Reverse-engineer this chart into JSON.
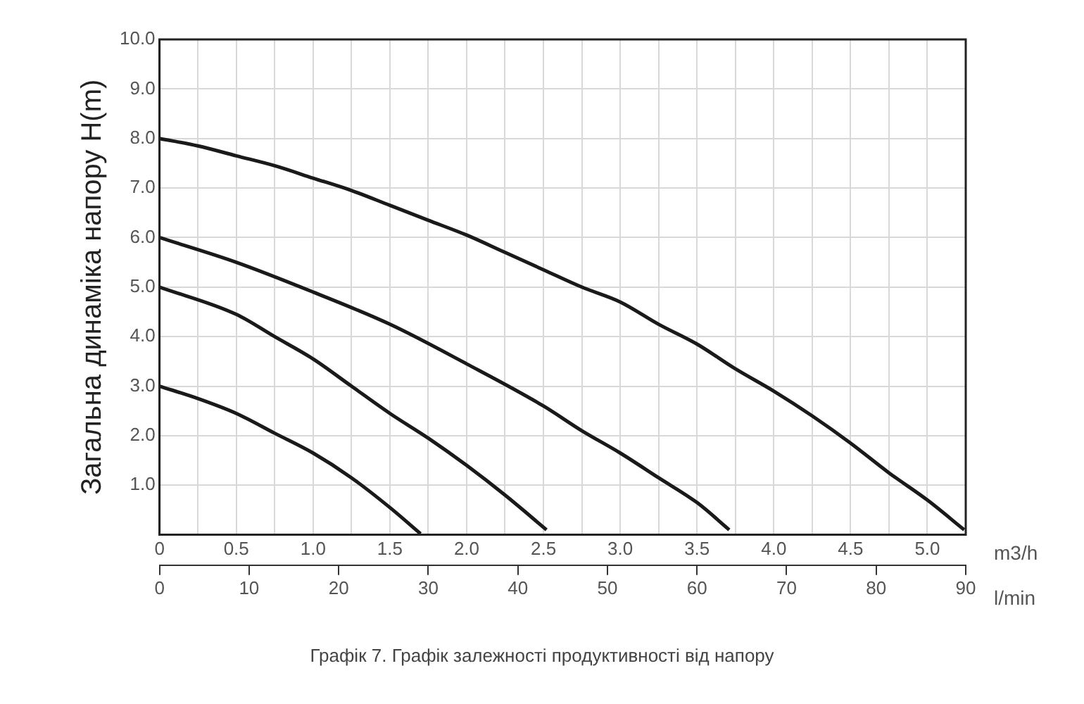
{
  "chart_data": {
    "type": "line",
    "ylabel": "Загальна динаміка напору H(m)",
    "xlabel": "m3/h",
    "x2label": "l/min",
    "annotations": [
      "Графік 7. Графік залежності продуктивності від напору"
    ],
    "xlim": [
      0,
      5.25
    ],
    "xticks": [
      0,
      {
        "value": 0.25,
        "label": null
      },
      0.5,
      {
        "value": 0.75,
        "label": null
      },
      {
        "value": 1,
        "label": "1.0"
      },
      {
        "value": 1.25,
        "label": null
      },
      1.5,
      {
        "value": 1.75,
        "label": null
      },
      {
        "value": 2,
        "label": "2.0"
      },
      {
        "value": 2.25,
        "label": null
      },
      2.5,
      {
        "value": 2.75,
        "label": null
      },
      {
        "value": 3,
        "label": "3.0"
      },
      {
        "value": 3.25,
        "label": null
      },
      3.5,
      {
        "value": 3.75,
        "label": null
      },
      {
        "value": 4,
        "label": "4.0"
      },
      {
        "value": 4.25,
        "label": null
      },
      4.5,
      {
        "value": 4.75,
        "label": null
      },
      {
        "value": 5,
        "label": "5.0"
      }
    ],
    "x2lim": [
      0,
      90
    ],
    "x2ticks": [
      0,
      10,
      20,
      30,
      40,
      50,
      60,
      70,
      80,
      90
    ],
    "ylim": [
      0,
      10
    ],
    "yticks": [
      {
        "value": 0,
        "label": null
      },
      {
        "value": 1,
        "label": "1.0"
      },
      {
        "value": 2,
        "label": "2.0"
      },
      {
        "value": 3,
        "label": "3.0"
      },
      {
        "value": 4,
        "label": "4.0"
      },
      {
        "value": 5,
        "label": "5.0"
      },
      {
        "value": 6,
        "label": "6.0"
      },
      {
        "value": 7,
        "label": "7.0"
      },
      {
        "value": 8,
        "label": "8.0"
      },
      {
        "value": 9,
        "label": "9.0"
      },
      {
        "value": 10,
        "label": "10.0"
      }
    ],
    "grid": true,
    "legend": false,
    "marker": "none",
    "line_style": "solid",
    "series": [
      {
        "color": "#1a1a1a",
        "x": [
          0,
          0.25,
          0.5,
          0.75,
          1,
          1.25,
          1.5,
          1.75,
          2,
          2.25,
          2.5,
          2.75,
          3,
          3.25,
          3.5,
          3.75,
          4,
          4.25,
          4.5,
          4.75,
          5,
          5.24
        ],
        "values": [
          8.0,
          7.85,
          7.65,
          7.45,
          7.2,
          6.95,
          6.65,
          6.35,
          6.05,
          5.7,
          5.35,
          5.0,
          4.7,
          4.25,
          3.85,
          3.35,
          2.9,
          2.4,
          1.85,
          1.25,
          0.7,
          0.1
        ]
      },
      {
        "color": "#1a1a1a",
        "x": [
          0,
          0.5,
          1,
          1.5,
          2,
          2.5,
          2.75,
          3,
          3.25,
          3.5,
          3.71
        ],
        "values": [
          6.0,
          5.5,
          4.9,
          4.25,
          3.45,
          2.6,
          2.1,
          1.65,
          1.15,
          0.65,
          0.1
        ]
      },
      {
        "color": "#1a1a1a",
        "x": [
          0,
          0.5,
          0.75,
          1,
          1.25,
          1.5,
          1.75,
          2,
          2.25,
          2.52
        ],
        "values": [
          5.0,
          4.45,
          4.0,
          3.55,
          3.0,
          2.45,
          1.95,
          1.4,
          0.8,
          0.1
        ]
      },
      {
        "color": "#1a1a1a",
        "x": [
          0,
          0.25,
          0.5,
          0.75,
          1,
          1.25,
          1.5,
          1.7
        ],
        "values": [
          3.0,
          2.75,
          2.45,
          2.05,
          1.65,
          1.15,
          0.55,
          0.02
        ]
      }
    ]
  }
}
